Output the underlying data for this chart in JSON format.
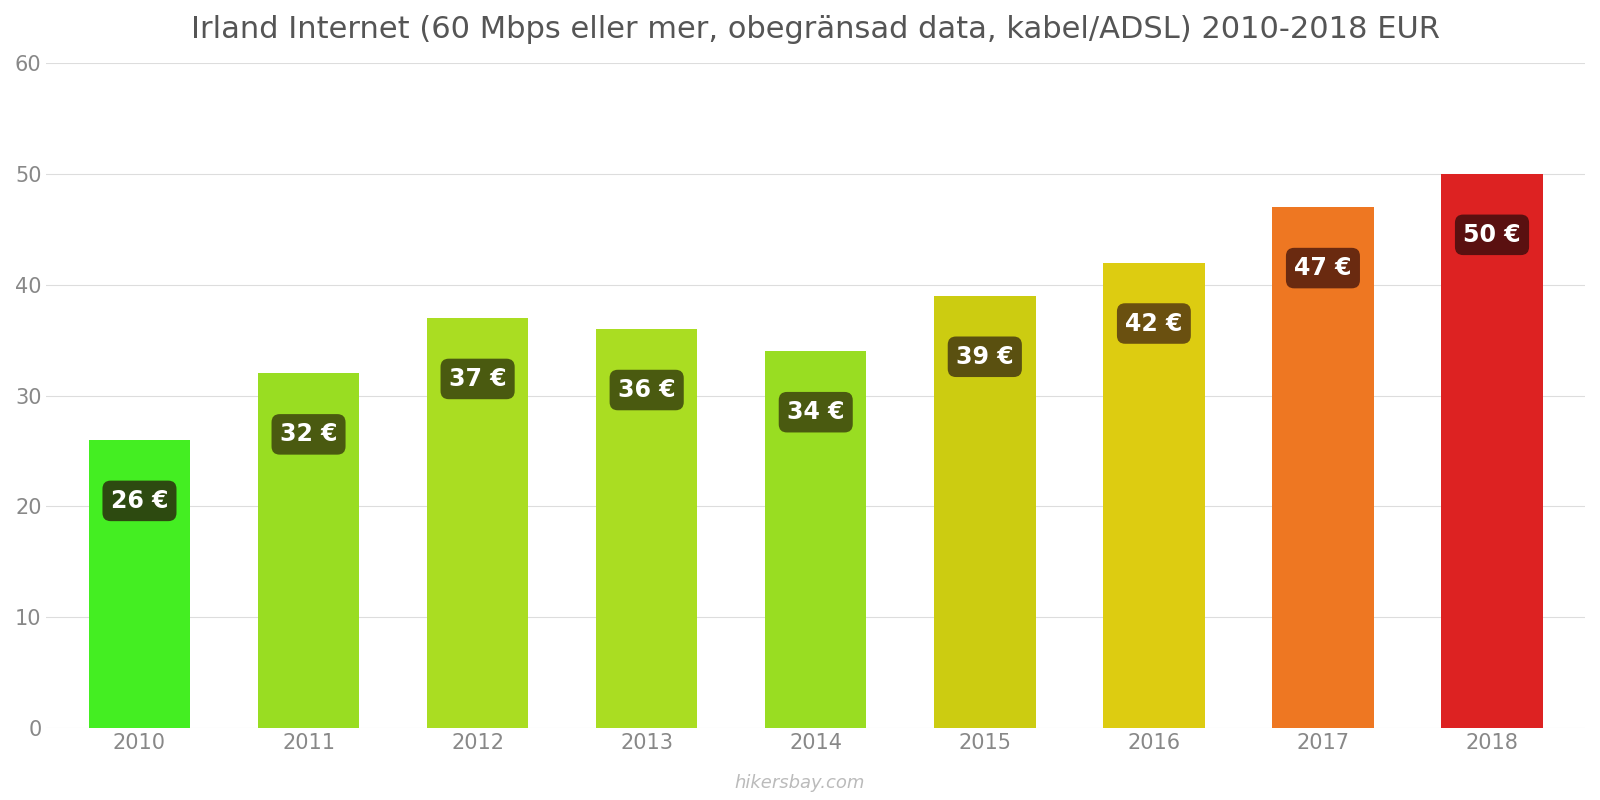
{
  "title": "Irland Internet (60 Mbps eller mer, obegränsad data, kabel/ADSL) 2010-2018 EUR",
  "years": [
    2010,
    2011,
    2012,
    2013,
    2014,
    2015,
    2016,
    2017,
    2018
  ],
  "values": [
    26,
    32,
    37,
    36,
    34,
    39,
    42,
    47,
    50
  ],
  "bar_colors": [
    "#44ee22",
    "#99dd22",
    "#aadd22",
    "#aadd22",
    "#99dd22",
    "#cccc11",
    "#ddcc11",
    "#ee7722",
    "#dd2222"
  ],
  "label_bg_colors": [
    "#2d4a10",
    "#4a5a10",
    "#4a5a10",
    "#4a5a10",
    "#4a5a10",
    "#5a5010",
    "#6a5010",
    "#6a2a10",
    "#5a1010"
  ],
  "ylim": [
    0,
    60
  ],
  "yticks": [
    0,
    10,
    20,
    30,
    40,
    50,
    60
  ],
  "watermark": "hikersbay.com",
  "background_color": "#ffffff",
  "label_fontsize": 17,
  "title_fontsize": 22,
  "tick_fontsize": 15
}
